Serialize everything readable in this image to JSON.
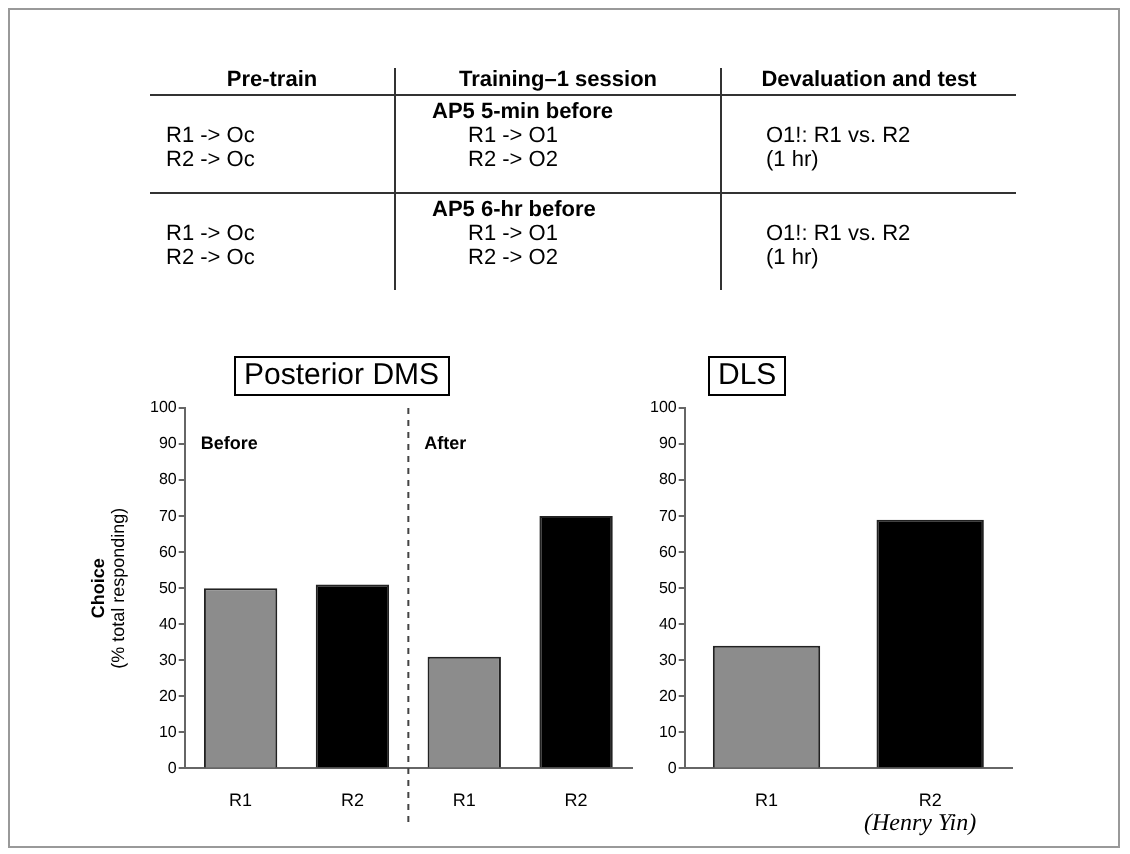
{
  "chart_data": [
    {
      "type": "other",
      "annotations": [
        "Pre-train",
        "Training–1 session",
        "Devaluation and test",
        "AP5  5-min before",
        "R1 -> Oc",
        "R1 -> O1",
        "O1!:  R1 vs. R2",
        "R2 -> Oc",
        "R2 -> O2",
        "(1 hr)",
        "AP5  6-hr before",
        "R1 -> Oc",
        "R1 -> O1",
        "O1!:  R1 vs. R2",
        "R2 -> Oc",
        "R2 -> O2",
        "(1 hr)"
      ]
    },
    {
      "type": "bar",
      "title": "Posterior DMS",
      "ylabel": "Choice\n(% total responding)",
      "categories": [
        "R1",
        "R2",
        "R1",
        "R2"
      ],
      "values": [
        50,
        51,
        31,
        70
      ],
      "colors": [
        "#8c8c8c",
        "#000000",
        "#8c8c8c",
        "#000000"
      ],
      "ylim": [
        0,
        100
      ],
      "yticks": [
        0,
        10,
        20,
        30,
        40,
        50,
        60,
        70,
        80,
        90,
        100
      ],
      "annotations": [
        "Before",
        "After"
      ]
    },
    {
      "type": "bar",
      "title": "DLS",
      "categories": [
        "R1",
        "R2"
      ],
      "values": [
        34,
        69
      ],
      "colors": [
        "#8c8c8c",
        "#000000"
      ],
      "ylim": [
        0,
        100
      ],
      "yticks": [
        0,
        10,
        20,
        30,
        40,
        50,
        60,
        70,
        80,
        90,
        100
      ],
      "annotations": [
        "(Henry Yin)"
      ]
    }
  ]
}
